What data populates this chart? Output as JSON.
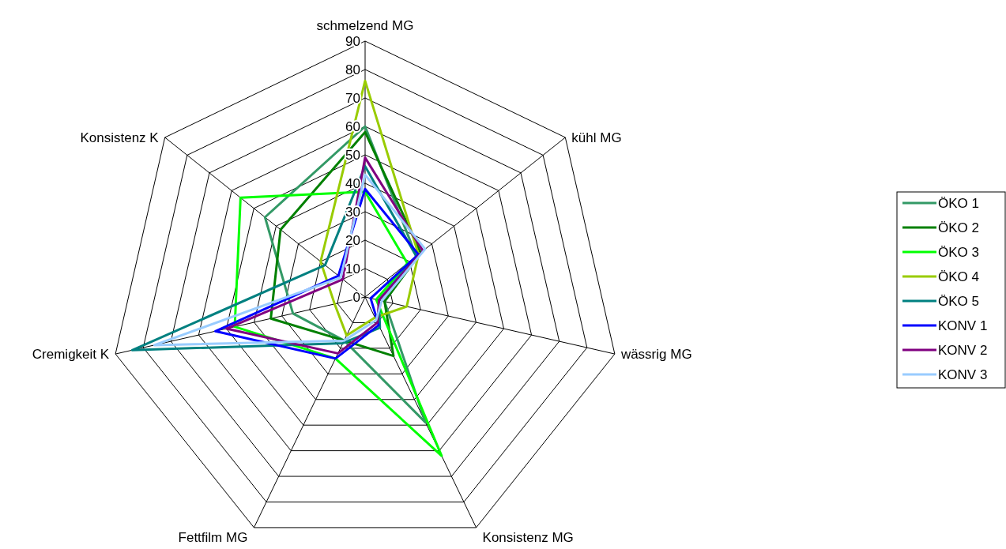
{
  "chart_data": {
    "type": "radar",
    "categories": [
      "schmelzend MG",
      "kühl MG",
      "wässrig MG",
      "Konsistenz MG",
      "Fettfilm MG",
      "Cremigkeit K",
      "Konsistenz K"
    ],
    "ylim": [
      0,
      90
    ],
    "yticks": [
      0,
      10,
      20,
      30,
      40,
      50,
      60,
      70,
      80,
      90
    ],
    "grid": true,
    "legend": "right",
    "marker": "none",
    "line_style": "solid",
    "series": [
      {
        "name": "ÖKO 1",
        "color": "#339966",
        "values": [
          60,
          23,
          7,
          49,
          17,
          26,
          45
        ]
      },
      {
        "name": "ÖKO 2",
        "color": "#008000",
        "values": [
          58,
          25,
          7,
          23,
          17,
          34,
          38
        ]
      },
      {
        "name": "ÖKO 3",
        "color": "#00ff00",
        "values": [
          37,
          19,
          4,
          62,
          24,
          47,
          56
        ]
      },
      {
        "name": "ÖKO 4",
        "color": "#99cc00",
        "values": [
          76,
          24,
          15,
          8,
          15,
          11,
          20
        ]
      },
      {
        "name": "ÖKO 5",
        "color": "#008080",
        "values": [
          46,
          23,
          5,
          12,
          18,
          84,
          18
        ]
      },
      {
        "name": "KONV 1",
        "color": "#0000ff",
        "values": [
          38,
          24,
          2,
          11,
          24,
          54,
          12
        ]
      },
      {
        "name": "KONV 2",
        "color": "#800080",
        "values": [
          49,
          26,
          5,
          10,
          22,
          50,
          10
        ]
      },
      {
        "name": "KONV 3",
        "color": "#99ccff",
        "values": [
          43,
          27,
          6,
          9,
          17,
          76,
          11
        ]
      }
    ]
  }
}
